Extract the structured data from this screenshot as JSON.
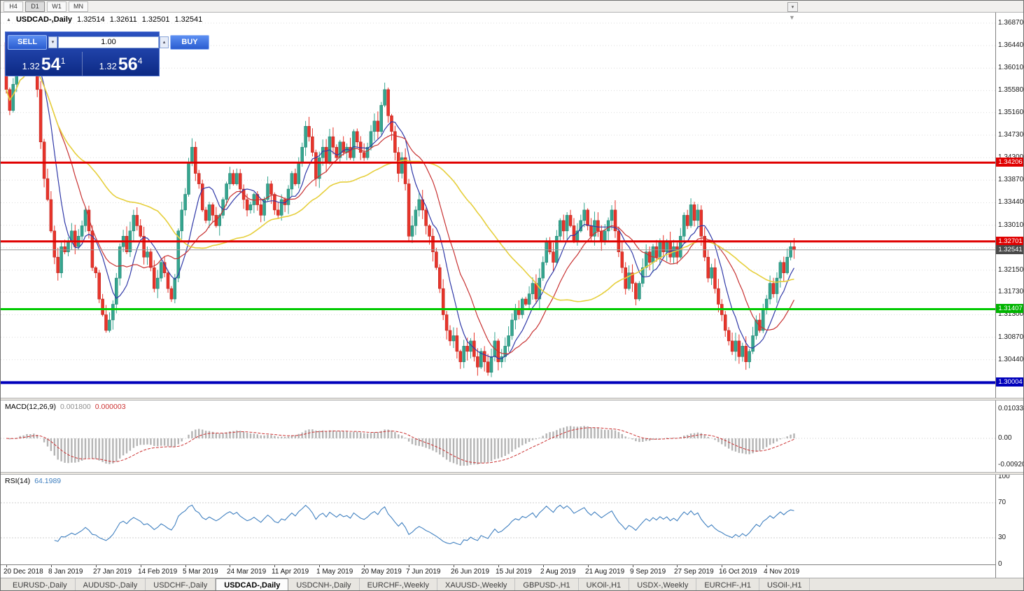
{
  "toolbar": {
    "timeframes": [
      "H4",
      "D1",
      "W1",
      "MN"
    ],
    "active": "D1"
  },
  "icons": {
    "title_arrow": "▲",
    "shift_marker": "▼",
    "overflow": "▾",
    "spin_down": "▾",
    "spin_up": "▴"
  },
  "chart_header": {
    "symbol": "USDCAD-,Daily",
    "open": "1.32514",
    "high": "1.32611",
    "low": "1.32501",
    "close": "1.32541"
  },
  "trade_panel": {
    "sell_label": "SELL",
    "buy_label": "BUY",
    "volume": "1.00",
    "sell_price": {
      "big": "1.32",
      "pips": "54",
      "sup": "1"
    },
    "buy_price": {
      "big": "1.32",
      "pips": "56",
      "sup": "4"
    }
  },
  "macd_header": {
    "title": "MACD(12,26,9)",
    "value_main": "0.001800",
    "value_signal": "0.000003"
  },
  "rsi_header": {
    "title": "RSI(14)",
    "value": "64.1989"
  },
  "price_axis": {
    "gridlines": [
      "1.36870",
      "1.36440",
      "1.36010",
      "1.35580",
      "1.35160",
      "1.34730",
      "1.34300",
      "1.33870",
      "1.33440",
      "1.33010",
      "1.32580",
      "1.32150",
      "1.31730",
      "1.31300",
      "1.30870",
      "1.30440",
      "1.30010"
    ]
  },
  "date_axis": {
    "interval": 13,
    "labels": [
      "20 Dec 2018",
      "8 Jan 2019",
      "27 Jan 2019",
      "14 Feb 2019",
      "5 Mar 2019",
      "24 Mar 2019",
      "11 Apr 2019",
      "1 May 2019",
      "20 May 2019",
      "7 Jun 2019",
      "26 Jun 2019",
      "15 Jul 2019",
      "2 Aug 2019",
      "21 Aug 2019",
      "9 Sep 2019",
      "27 Sep 2019",
      "16 Oct 2019",
      "4 Nov 2019"
    ]
  },
  "tabs": {
    "labels": [
      "EURUSD-,Daily",
      "AUDUSD-,Daily",
      "USDCHF-,Daily",
      "USDCAD-,Daily",
      "USDCNH-,Daily",
      "EURCHF-,Weekly",
      "XAUUSD-,Weekly",
      "GBPUSD-,H1",
      "UKOil-,H1",
      "USDX-,Weekly",
      "EURCHF-,H1",
      "USOil-,H1"
    ],
    "active": "USDCAD-,Daily"
  },
  "chart_data": {
    "type": "candlestick",
    "symbol": "USDCAD-",
    "timeframe": "Daily",
    "up_color": "#35a58f",
    "up_border": "#1b7d6a",
    "down_color": "#e8342a",
    "down_border": "#b31f1a",
    "first_open": 1.365,
    "closes": [
      1.356,
      1.352,
      1.357,
      1.36,
      1.364,
      1.361,
      1.365,
      1.36,
      1.363,
      1.356,
      1.346,
      1.339,
      1.335,
      1.329,
      1.324,
      1.321,
      1.326,
      1.325,
      1.327,
      1.329,
      1.326,
      1.328,
      1.33,
      1.333,
      1.329,
      1.322,
      1.321,
      1.316,
      1.313,
      1.31,
      1.312,
      1.315,
      1.32,
      1.326,
      1.328,
      1.325,
      1.329,
      1.332,
      1.33,
      1.328,
      1.324,
      1.325,
      1.322,
      1.318,
      1.32,
      1.323,
      1.321,
      1.318,
      1.316,
      1.32,
      1.329,
      1.333,
      1.336,
      1.342,
      1.345,
      1.34,
      1.338,
      1.333,
      1.331,
      1.334,
      1.332,
      1.33,
      1.332,
      1.335,
      1.338,
      1.34,
      1.338,
      1.34,
      1.337,
      1.335,
      1.333,
      1.334,
      1.336,
      1.334,
      1.332,
      1.335,
      1.338,
      1.336,
      1.333,
      1.332,
      1.335,
      1.334,
      1.337,
      1.34,
      1.338,
      1.342,
      1.345,
      1.349,
      1.347,
      1.344,
      1.339,
      1.343,
      1.345,
      1.342,
      1.347,
      1.345,
      1.343,
      1.346,
      1.344,
      1.345,
      1.343,
      1.348,
      1.346,
      1.344,
      1.343,
      1.345,
      1.348,
      1.35,
      1.348,
      1.353,
      1.356,
      1.351,
      1.348,
      1.344,
      1.34,
      1.343,
      1.338,
      1.328,
      1.33,
      1.333,
      1.335,
      1.333,
      1.33,
      1.328,
      1.325,
      1.322,
      1.318,
      1.313,
      1.31,
      1.308,
      1.309,
      1.306,
      1.304,
      1.307,
      1.306,
      1.308,
      1.305,
      1.303,
      1.306,
      1.304,
      1.302,
      1.305,
      1.308,
      1.304,
      1.305,
      1.307,
      1.309,
      1.312,
      1.314,
      1.313,
      1.316,
      1.315,
      1.317,
      1.319,
      1.316,
      1.32,
      1.323,
      1.327,
      1.325,
      1.323,
      1.328,
      1.331,
      1.329,
      1.332,
      1.33,
      1.327,
      1.329,
      1.331,
      1.333,
      1.33,
      1.328,
      1.331,
      1.329,
      1.327,
      1.329,
      1.331,
      1.333,
      1.329,
      1.325,
      1.322,
      1.318,
      1.321,
      1.319,
      1.316,
      1.319,
      1.322,
      1.325,
      1.323,
      1.326,
      1.324,
      1.327,
      1.325,
      1.327,
      1.324,
      1.326,
      1.324,
      1.328,
      1.332,
      1.33,
      1.334,
      1.331,
      1.333,
      1.328,
      1.324,
      1.32,
      1.322,
      1.318,
      1.315,
      1.313,
      1.31,
      1.308,
      1.306,
      1.308,
      1.305,
      1.307,
      1.304,
      1.306,
      1.309,
      1.312,
      1.31,
      1.314,
      1.316,
      1.319,
      1.317,
      1.32,
      1.323,
      1.321,
      1.324,
      1.326,
      1.32541
    ],
    "levels": [
      {
        "price": 1.34206,
        "label": "1.34206",
        "color": "#e00000",
        "label_bg": "#e00000",
        "width": 3
      },
      {
        "price": 1.32701,
        "label": "1.32701",
        "color": "#e00000",
        "label_bg": "#e00000",
        "width": 3
      },
      {
        "price": 1.32541,
        "label": "1.32541",
        "color": "#9a9a9a",
        "label_bg": "#4a4a4a",
        "width": 1
      },
      {
        "price": 1.31407,
        "label": "1.31407",
        "color": "#00ca00",
        "label_bg": "#00b400",
        "width": 3
      },
      {
        "price": 1.30004,
        "label": "1.30004",
        "color": "#0000bb",
        "label_bg": "#0000bb",
        "width": 4
      }
    ],
    "moving_averages": [
      {
        "period": 8,
        "color": "#3039a8",
        "width": 1.2
      },
      {
        "period": 16,
        "color": "#c83232",
        "width": 1.2
      },
      {
        "period": 45,
        "color": "#e6cf3c",
        "width": 1.6
      }
    ],
    "macd": {
      "fast": 12,
      "slow": 26,
      "signal": 9,
      "histogram_color": "#b4b4b4",
      "signal_color": "#cc3333"
    },
    "macd_axis": [
      "0.010331",
      "0.00",
      "-0.009203"
    ],
    "rsi": {
      "period": 14,
      "levels": [
        70,
        30
      ],
      "line_color": "#4080c0"
    },
    "rsi_axis": [
      "100",
      "70",
      "30",
      "0"
    ]
  }
}
